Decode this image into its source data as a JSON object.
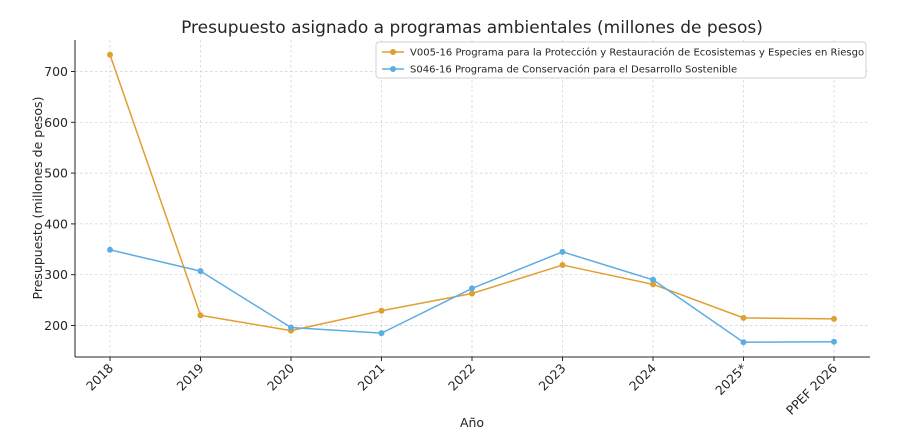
{
  "chart_data": {
    "type": "line",
    "title": "Presupuesto asignado a programas ambientales (millones de pesos)",
    "xlabel": "Año",
    "ylabel": "Presupuesto (millones de pesos)",
    "categories": [
      "2018",
      "2019",
      "2020",
      "2021",
      "2022",
      "2023",
      "2024",
      "2025*",
      "PPEF 2026"
    ],
    "ylim": [
      138,
      762
    ],
    "yticks": [
      200,
      300,
      400,
      500,
      600,
      700
    ],
    "grid": true,
    "legend_position": "top-right",
    "series": [
      {
        "name": "V005-16 Programa para la Protección y Restauración de Ecosistemas y Especies en Riesgo",
        "color": "#E0A030",
        "values": [
          733,
          220,
          190,
          229,
          263,
          319,
          281,
          215,
          213
        ]
      },
      {
        "name": "S046-16 Programa de Conservación para el Desarrollo Sostenible",
        "color": "#5DADE2",
        "values": [
          349,
          307,
          196,
          185,
          273,
          345,
          290,
          167,
          168
        ]
      }
    ]
  }
}
